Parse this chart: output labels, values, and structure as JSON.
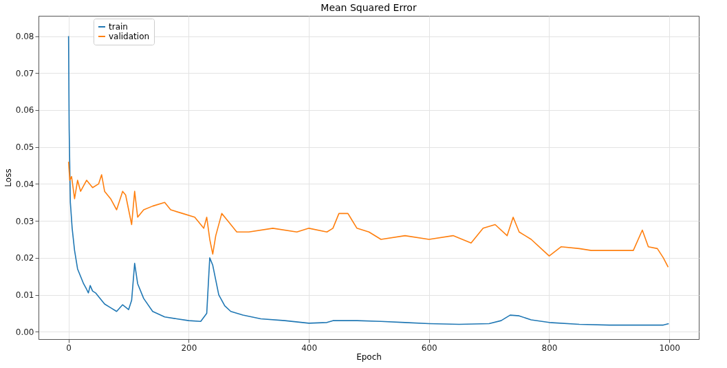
{
  "chart_data": {
    "type": "line",
    "title": "Mean Squared Error",
    "xlabel": "Epoch",
    "ylabel": "Loss",
    "xlim": [
      -50,
      1049
    ],
    "ylim": [
      -0.002,
      0.0855
    ],
    "xticks": [
      0,
      200,
      400,
      600,
      800,
      1000
    ],
    "yticks": [
      {
        "value": 0,
        "label": "0.00"
      },
      {
        "value": 0.01,
        "label": "0.01"
      },
      {
        "value": 0.02,
        "label": "0.02"
      },
      {
        "value": 0.03,
        "label": "0.03"
      },
      {
        "value": 0.04,
        "label": "0.04"
      },
      {
        "value": 0.05,
        "label": "0.05"
      },
      {
        "value": 0.06,
        "label": "0.06"
      },
      {
        "value": 0.07,
        "label": "0.07"
      },
      {
        "value": 0.08,
        "label": "0.08"
      }
    ],
    "grid": true,
    "legend": "top left",
    "series": [
      {
        "name": "train",
        "color": "#1f77b4",
        "x": [
          0,
          1,
          3,
          6,
          10,
          15,
          20,
          25,
          30,
          33,
          36,
          40,
          45,
          50,
          60,
          70,
          80,
          90,
          100,
          105,
          110,
          115,
          125,
          140,
          160,
          180,
          200,
          220,
          230,
          235,
          240,
          245,
          250,
          260,
          270,
          290,
          320,
          360,
          400,
          430,
          440,
          480,
          520,
          560,
          600,
          650,
          700,
          720,
          735,
          750,
          770,
          800,
          850,
          900,
          950,
          990,
          999
        ],
        "values": [
          0.08,
          0.055,
          0.035,
          0.028,
          0.022,
          0.017,
          0.015,
          0.013,
          0.0115,
          0.0105,
          0.0125,
          0.011,
          0.0105,
          0.0095,
          0.0075,
          0.0065,
          0.0055,
          0.0073,
          0.006,
          0.0085,
          0.0185,
          0.013,
          0.009,
          0.0055,
          0.004,
          0.0035,
          0.003,
          0.0028,
          0.005,
          0.02,
          0.018,
          0.014,
          0.01,
          0.007,
          0.0055,
          0.0045,
          0.0035,
          0.003,
          0.0023,
          0.0025,
          0.003,
          0.003,
          0.0028,
          0.0025,
          0.0022,
          0.002,
          0.0022,
          0.003,
          0.0045,
          0.0043,
          0.0032,
          0.0025,
          0.002,
          0.0018,
          0.0018,
          0.0018,
          0.0022
        ]
      },
      {
        "name": "validation",
        "color": "#ff7f0e",
        "x": [
          0,
          2,
          5,
          10,
          15,
          20,
          30,
          40,
          50,
          55,
          60,
          70,
          80,
          90,
          95,
          100,
          105,
          110,
          115,
          125,
          140,
          160,
          170,
          190,
          210,
          225,
          230,
          235,
          240,
          245,
          255,
          265,
          280,
          300,
          340,
          380,
          400,
          430,
          440,
          450,
          465,
          480,
          500,
          520,
          560,
          600,
          640,
          670,
          690,
          710,
          730,
          740,
          750,
          770,
          790,
          800,
          820,
          850,
          870,
          900,
          940,
          955,
          965,
          980,
          990,
          998
        ],
        "values": [
          0.046,
          0.041,
          0.042,
          0.036,
          0.041,
          0.038,
          0.041,
          0.039,
          0.04,
          0.0425,
          0.038,
          0.036,
          0.033,
          0.038,
          0.037,
          0.033,
          0.029,
          0.038,
          0.031,
          0.033,
          0.034,
          0.035,
          0.033,
          0.032,
          0.031,
          0.028,
          0.031,
          0.025,
          0.021,
          0.026,
          0.032,
          0.03,
          0.027,
          0.027,
          0.028,
          0.027,
          0.028,
          0.027,
          0.028,
          0.032,
          0.032,
          0.028,
          0.027,
          0.025,
          0.026,
          0.025,
          0.026,
          0.024,
          0.028,
          0.029,
          0.026,
          0.031,
          0.027,
          0.025,
          0.022,
          0.0205,
          0.023,
          0.0225,
          0.022,
          0.022,
          0.022,
          0.0275,
          0.023,
          0.0225,
          0.02,
          0.0175
        ]
      }
    ]
  }
}
